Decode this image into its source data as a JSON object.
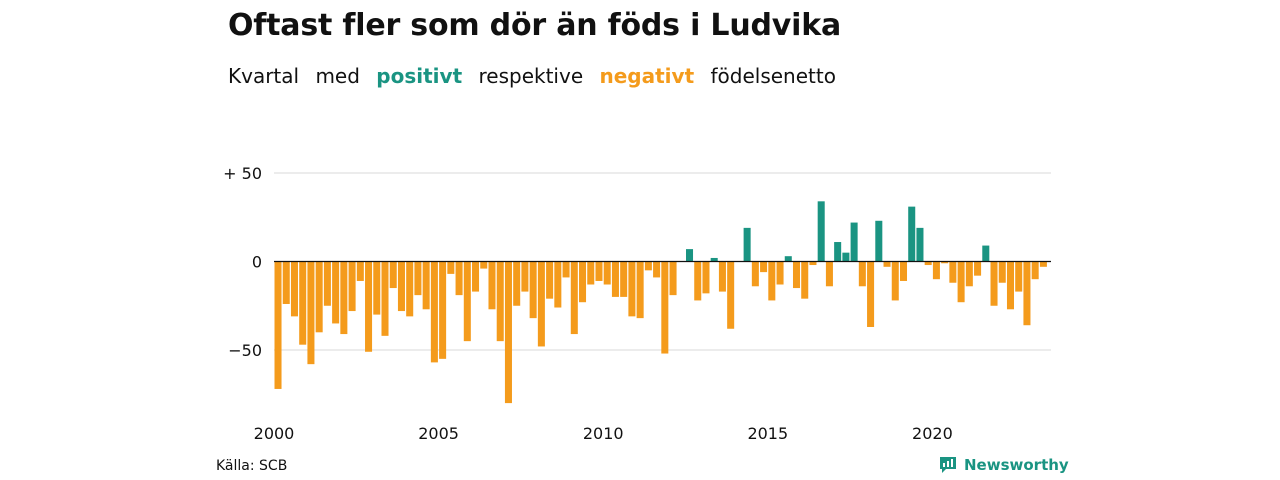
{
  "header": {
    "title": "Oftast fler som dör än föds i Ludvika",
    "subtitle_words": [
      "Kvartal",
      "med",
      "positivt",
      "respektive",
      "negativt",
      "födelsenetto"
    ]
  },
  "footer": {
    "source": "Källa: SCB",
    "brand": "Newsworthy"
  },
  "icons": {
    "brand_logo": "newsworthy-logo-icon"
  },
  "chart_data": {
    "type": "bar",
    "title": "Oftast fler som dör än föds i Ludvika",
    "subtitle": "Kvartal med positivt respektive negativt födelsenetto",
    "xlabel": "",
    "ylabel": "",
    "x_start": 2000,
    "periods_per_year": 4,
    "ylim": [
      -80,
      50
    ],
    "yticks": [
      50,
      0,
      -50
    ],
    "ytick_labels": [
      "+ 50",
      "0",
      "−50"
    ],
    "xticks": [
      2000,
      2005,
      2010,
      2015,
      2020
    ],
    "xtick_labels": [
      "2000",
      "2005",
      "2010",
      "2015",
      "2020"
    ],
    "grid": true,
    "colors": {
      "positive": "#1a9482",
      "negative": "#f49b1c",
      "grid": "#d9d9d9",
      "zero": "#111111"
    },
    "values": [
      -72,
      -24,
      -31,
      -47,
      -58,
      -40,
      -25,
      -35,
      -41,
      -28,
      -11,
      -51,
      -30,
      -42,
      -15,
      -28,
      -31,
      -19,
      -27,
      -57,
      -55,
      -7,
      -19,
      -45,
      -17,
      -4,
      -27,
      -45,
      -80,
      -25,
      -17,
      -32,
      -48,
      -21,
      -26,
      -9,
      -41,
      -23,
      -13,
      -11,
      -13,
      -20,
      -20,
      -31,
      -32,
      -5,
      -9,
      -52,
      -19,
      0,
      7,
      -22,
      -18,
      2,
      -17,
      -38,
      0,
      19,
      -14,
      -6,
      -22,
      -13,
      3,
      -15,
      -21,
      -2,
      34,
      -14,
      11,
      5,
      22,
      -14,
      -37,
      23,
      -3,
      -22,
      -11,
      31,
      19,
      -2,
      -10,
      -1,
      -12,
      -23,
      -14,
      -8,
      9,
      -25,
      -12,
      -27,
      -17,
      -36,
      -10,
      -3
    ]
  }
}
